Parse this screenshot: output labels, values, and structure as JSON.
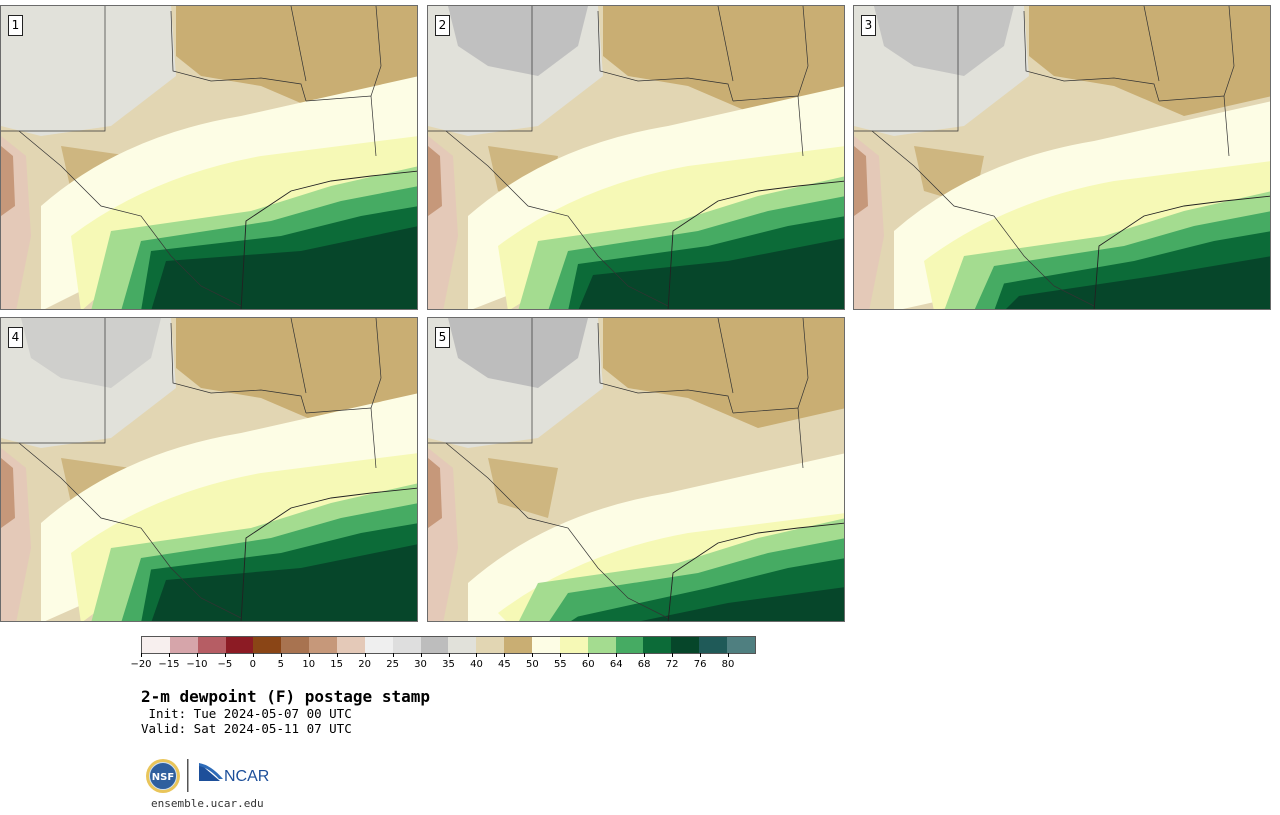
{
  "panels": [
    {
      "label": "1",
      "variant": 0
    },
    {
      "label": "2",
      "variant": 1
    },
    {
      "label": "3",
      "variant": 2
    },
    {
      "label": "4",
      "variant": 3
    },
    {
      "label": "5",
      "variant": 4
    }
  ],
  "colorbar": {
    "ticks": [
      "−20",
      "−15",
      "−10",
      "−5",
      "0",
      "5",
      "10",
      "15",
      "20",
      "25",
      "30",
      "35",
      "40",
      "45",
      "50",
      "55",
      "60",
      "64",
      "68",
      "72",
      "76",
      "80"
    ],
    "colors": [
      "#f7efee",
      "#d6a5aa",
      "#b65d64",
      "#8c1b24",
      "#8a4516",
      "#a87350",
      "#c6987a",
      "#e4c9b8",
      "#efefef",
      "#dedede",
      "#bdbdbd",
      "#e1e1da",
      "#e2d6b3",
      "#c9ae73",
      "#fdfde5",
      "#f6f9b6",
      "#a4dc90",
      "#46ab63",
      "#0c6b38",
      "#06462a",
      "#1f5a58",
      "#4f7f80"
    ]
  },
  "title": "2-m dewpoint (F) postage stamp",
  "init_line": " Init: Tue 2024-05-07 00 UTC",
  "valid_line": "Valid: Sat 2024-05-11 07 UTC",
  "logos": {
    "nsf": "NSF",
    "ncar": "NCAR"
  },
  "url": "ensemble.ucar.edu"
}
